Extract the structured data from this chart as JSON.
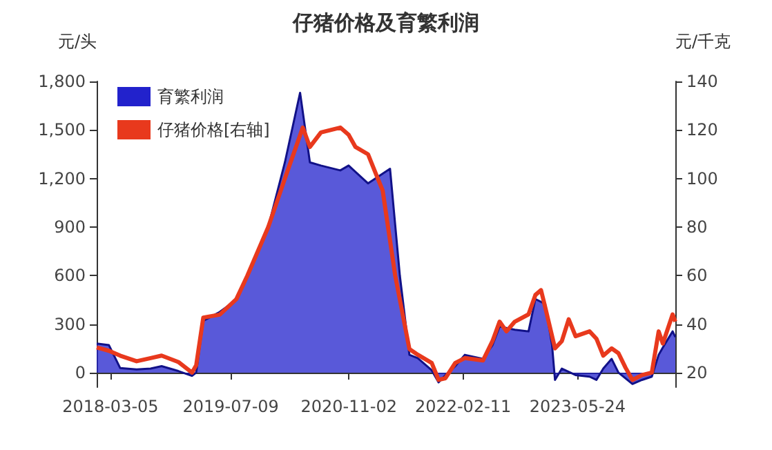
{
  "chart_data": {
    "type": "area",
    "title": "仔猪价格及育繁利润",
    "ylabel": "元/头",
    "y2label": "元/千克",
    "xlim": [
      "2018-01-08",
      "2024-06-26"
    ],
    "xticks": [
      "2018-03-05",
      "2019-07-09",
      "2020-11-02",
      "2022-02-11",
      "2023-05-24"
    ],
    "ylim": [
      -90,
      1800
    ],
    "yticks": [
      0,
      300,
      600,
      900,
      {
        "value": 1200,
        "label": "1,200"
      },
      {
        "value": 1500,
        "label": "1,500"
      },
      {
        "value": 1800,
        "label": "1,800"
      }
    ],
    "y2lim": [
      14,
      140
    ],
    "y2ticks": [
      20,
      40,
      60,
      80,
      100,
      120,
      140
    ],
    "grid": false,
    "legend": "top left",
    "marker": "none",
    "line_style": "solid",
    "series": [
      {
        "name": "育繁利润",
        "color": "#2222cc",
        "x": [
          "2018-01-08",
          "2018-02-27",
          "2018-04-14",
          "2018-06-20",
          "2018-08-16",
          "2018-09-30",
          "2018-12-07",
          "2019-02-01",
          "2019-02-18",
          "2019-03-19",
          "2019-05-25",
          "2019-08-01",
          "2019-09-15",
          "2019-12-09",
          "2020-02-15",
          "2020-04-17",
          "2020-05-27",
          "2020-07-11",
          "2020-09-28",
          "2020-11-01",
          "2021-01-19",
          "2021-04-19",
          "2021-05-29",
          "2021-07-07",
          "2021-08-10",
          "2021-10-06",
          "2021-11-03",
          "2021-12-01",
          "2022-01-10",
          "2022-02-18",
          "2022-05-03",
          "2022-06-11",
          "2022-07-10",
          "2022-09-10",
          "2022-11-05",
          "2022-12-03",
          "2023-01-12",
          "2023-02-09",
          "2023-02-21",
          "2023-03-21",
          "2023-05-16",
          "2023-07-12",
          "2023-08-09",
          "2023-09-06",
          "2023-10-10",
          "2023-11-07",
          "2024-01-03",
          "2024-02-11",
          "2024-03-22",
          "2024-04-19",
          "2024-05-06",
          "2024-06-15",
          "2024-06-26"
        ],
        "values": [
          180,
          170,
          28,
          20,
          25,
          40,
          10,
          -20,
          0,
          320,
          375,
          450,
          600,
          900,
          1300,
          1730,
          1300,
          1280,
          1250,
          1280,
          1170,
          1260,
          600,
          110,
          90,
          15,
          -60,
          -15,
          40,
          110,
          85,
          170,
          285,
          265,
          255,
          455,
          425,
          170,
          -45,
          25,
          -15,
          -25,
          -45,
          25,
          85,
          0,
          -70,
          -45,
          -25,
          110,
          155,
          255,
          220
        ]
      },
      {
        "name": "仔猪价格[右轴]",
        "type": "line",
        "axis": "y2",
        "color": "#e8391d",
        "x": [
          "2018-01-08",
          "2018-02-27",
          "2018-04-14",
          "2018-06-20",
          "2018-08-16",
          "2018-09-30",
          "2018-12-07",
          "2019-02-01",
          "2019-02-18",
          "2019-03-19",
          "2019-05-25",
          "2019-08-01",
          "2019-09-15",
          "2019-12-09",
          "2020-02-15",
          "2020-04-28",
          "2020-05-27",
          "2020-07-11",
          "2020-09-28",
          "2020-11-01",
          "2020-11-29",
          "2021-01-19",
          "2021-03-20",
          "2021-05-10",
          "2021-07-07",
          "2021-08-10",
          "2021-10-06",
          "2021-11-03",
          "2021-12-01",
          "2022-01-10",
          "2022-02-18",
          "2022-05-03",
          "2022-06-11",
          "2022-07-10",
          "2022-08-07",
          "2022-09-10",
          "2022-11-05",
          "2022-12-03",
          "2022-12-26",
          "2023-01-12",
          "2023-02-21",
          "2023-03-21",
          "2023-04-18",
          "2023-05-16",
          "2023-07-12",
          "2023-08-09",
          "2023-09-06",
          "2023-10-10",
          "2023-11-07",
          "2023-12-06",
          "2024-01-03",
          "2024-02-11",
          "2024-03-22",
          "2024-04-19",
          "2024-05-06",
          "2024-06-15",
          "2024-06-26"
        ],
        "values": [
          30.4,
          29,
          27,
          24.7,
          26,
          27,
          24.4,
          20,
          23,
          42.7,
          43.9,
          50.3,
          60,
          80,
          100,
          121,
          113,
          119,
          121,
          118,
          113,
          110,
          95,
          60,
          29.7,
          27.4,
          24,
          17,
          17.7,
          24,
          26,
          25,
          33,
          41,
          37,
          41,
          44,
          52,
          54,
          47,
          30,
          33,
          42,
          35,
          37,
          34,
          27,
          30,
          28,
          22,
          17,
          19,
          20,
          37,
          32,
          44,
          41
        ]
      }
    ]
  }
}
